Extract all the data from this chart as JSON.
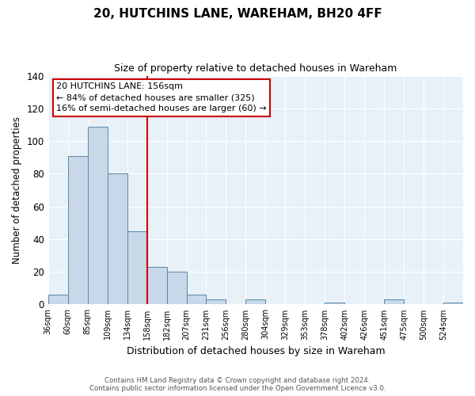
{
  "title": "20, HUTCHINS LANE, WAREHAM, BH20 4FF",
  "subtitle": "Size of property relative to detached houses in Wareham",
  "xlabel": "Distribution of detached houses by size in Wareham",
  "ylabel": "Number of detached properties",
  "categories": [
    "36sqm",
    "60sqm",
    "85sqm",
    "109sqm",
    "134sqm",
    "158sqm",
    "182sqm",
    "207sqm",
    "231sqm",
    "256sqm",
    "280sqm",
    "304sqm",
    "329sqm",
    "353sqm",
    "378sqm",
    "402sqm",
    "426sqm",
    "451sqm",
    "475sqm",
    "500sqm",
    "524sqm"
  ],
  "values": [
    6,
    91,
    109,
    80,
    45,
    23,
    20,
    6,
    3,
    0,
    3,
    0,
    0,
    0,
    1,
    0,
    0,
    3,
    0,
    0,
    1
  ],
  "bar_color": "#c8d8e8",
  "bar_edge_color": "#5588aa",
  "vline_x_index": 5,
  "vline_color": "#cc0000",
  "annotation_line1": "20 HUTCHINS LANE: 156sqm",
  "annotation_line2": "← 84% of detached houses are smaller (325)",
  "annotation_line3": "16% of semi-detached houses are larger (60) →",
  "annotation_box_edge_color": "#cc0000",
  "ylim": [
    0,
    140
  ],
  "yticks": [
    0,
    20,
    40,
    60,
    80,
    100,
    120,
    140
  ],
  "background_color": "#e8f0f8",
  "footer_line1": "Contains HM Land Registry data © Crown copyright and database right 2024.",
  "footer_line2": "Contains public sector information licensed under the Open Government Licence v3.0."
}
